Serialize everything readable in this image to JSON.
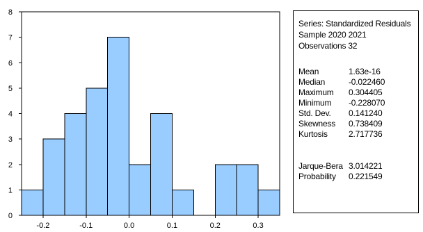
{
  "chart_data": {
    "type": "bar",
    "bins": [
      {
        "x0": -0.25,
        "x1": -0.2,
        "count": 1
      },
      {
        "x0": -0.2,
        "x1": -0.15,
        "count": 3
      },
      {
        "x0": -0.15,
        "x1": -0.1,
        "count": 4
      },
      {
        "x0": -0.1,
        "x1": -0.05,
        "count": 5
      },
      {
        "x0": -0.05,
        "x1": 0.0,
        "count": 7
      },
      {
        "x0": 0.0,
        "x1": 0.05,
        "count": 2
      },
      {
        "x0": 0.05,
        "x1": 0.1,
        "count": 4
      },
      {
        "x0": 0.1,
        "x1": 0.15,
        "count": 1
      },
      {
        "x0": 0.15,
        "x1": 0.2,
        "count": 0
      },
      {
        "x0": 0.2,
        "x1": 0.25,
        "count": 2
      },
      {
        "x0": 0.25,
        "x1": 0.3,
        "count": 2
      },
      {
        "x0": 0.3,
        "x1": 0.35,
        "count": 1
      }
    ],
    "xlim": [
      -0.25,
      0.35
    ],
    "ylim": [
      0,
      8
    ],
    "xticks": [
      -0.2,
      -0.1,
      0.0,
      0.1,
      0.2,
      0.3
    ],
    "xtick_labels": [
      "-0.2",
      "-0.1",
      "0.0",
      "0.1",
      "0.2",
      "0.3"
    ],
    "yticks": [
      0,
      1,
      2,
      3,
      4,
      5,
      6,
      7,
      8
    ],
    "ytick_labels": [
      "0",
      "1",
      "2",
      "3",
      "4",
      "5",
      "6",
      "7",
      "8"
    ],
    "grid": false,
    "bar_fill": "#99ccff",
    "bar_stroke": "#000000"
  },
  "stats_panel": {
    "series": "Series: Standardized Residuals",
    "sample": "Sample 2020 2021",
    "observations": "Observations 32",
    "rows": [
      {
        "label": "Mean",
        "value": "1.63e-16"
      },
      {
        "label": "Median",
        "value": "-0.022460"
      },
      {
        "label": "Maximum",
        "value": "0.304405"
      },
      {
        "label": "Minimum",
        "value": "-0.228070"
      },
      {
        "label": "Std. Dev.",
        "value": "0.141240"
      },
      {
        "label": "Skewness",
        "value": "0.738409"
      },
      {
        "label": "Kurtosis",
        "value": "2.717736"
      }
    ],
    "test_rows": [
      {
        "label": "Jarque-Bera",
        "value": "3.014221"
      },
      {
        "label": "Probability",
        "value": "0.221549"
      }
    ]
  }
}
